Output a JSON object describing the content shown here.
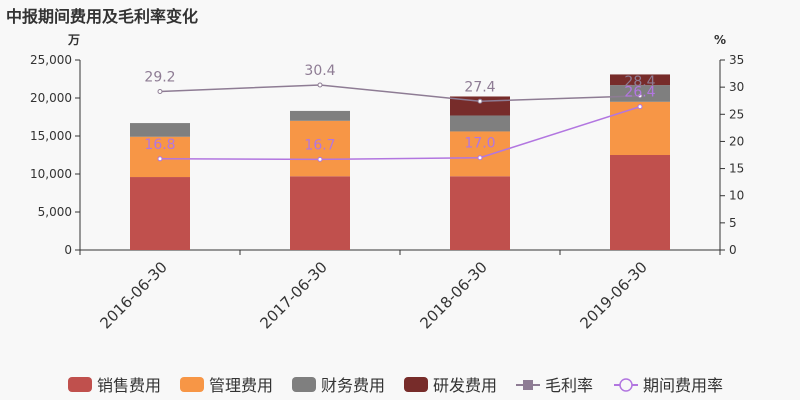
{
  "title": "中报期间费用及毛利率变化",
  "chart_data": {
    "type": "bar",
    "title": "中报期间费用及毛利率变化",
    "left_unit": "万",
    "right_unit": "%",
    "categories": [
      "2016-06-30",
      "2017-06-30",
      "2018-06-30",
      "2019-06-30"
    ],
    "left_ylim": [
      0,
      25000
    ],
    "left_ticks": [
      0,
      5000,
      10000,
      15000,
      20000,
      25000
    ],
    "left_tick_labels": [
      "0",
      "5,000",
      "10,000",
      "15,000",
      "20,000",
      "25,000"
    ],
    "right_ylim": [
      0,
      35
    ],
    "right_ticks": [
      0,
      5,
      10,
      15,
      20,
      25,
      30,
      35
    ],
    "right_tick_labels": [
      "0",
      "5",
      "10",
      "15",
      "20",
      "25",
      "30",
      "35"
    ],
    "stacked": true,
    "series": [
      {
        "name": "销售费用",
        "type": "bar",
        "axis": "left",
        "color": "#c0504d",
        "values": [
          9600,
          9700,
          9700,
          12500
        ]
      },
      {
        "name": "管理费用",
        "type": "bar",
        "axis": "left",
        "color": "#f79646",
        "values": [
          5300,
          7300,
          5900,
          7000
        ]
      },
      {
        "name": "财务费用",
        "type": "bar",
        "axis": "left",
        "color": "#7f7f7f",
        "values": [
          1800,
          1300,
          2100,
          2200
        ]
      },
      {
        "name": "研发费用",
        "type": "bar",
        "axis": "left",
        "color": "#772c2a",
        "values": [
          0,
          0,
          2500,
          1400
        ]
      },
      {
        "name": "毛利率",
        "type": "line",
        "axis": "right",
        "color": "#8e7c94",
        "values": [
          29.2,
          30.4,
          27.4,
          28.4
        ],
        "labels": [
          "29.2",
          "30.4",
          "27.4",
          "28.4"
        ]
      },
      {
        "name": "期间费用率",
        "type": "line",
        "axis": "right",
        "color": "#b276e0",
        "values": [
          16.8,
          16.7,
          17.0,
          26.4
        ],
        "labels": [
          "16.8",
          "16.7",
          "17.0",
          "26.4"
        ]
      }
    ],
    "legend_position": "bottom",
    "grid": false
  }
}
